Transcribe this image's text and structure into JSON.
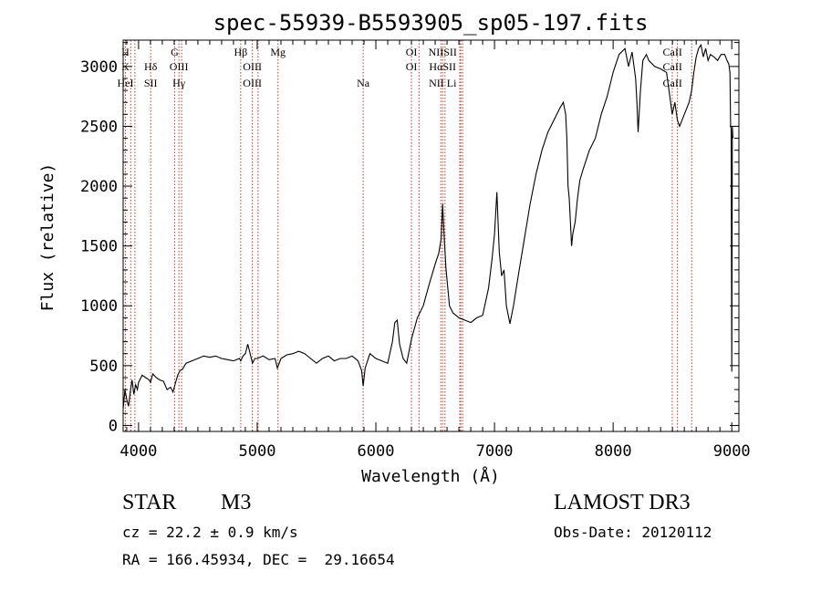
{
  "chart_data": {
    "type": "line",
    "title": "spec-55939-B5593905_sp05-197.fits",
    "xlabel": "Wavelength (Å)",
    "ylabel": "Flux (relative)",
    "xlim": [
      3870,
      9060
    ],
    "ylim": [
      -50,
      3220
    ],
    "xticks": [
      4000,
      5000,
      6000,
      7000,
      8000,
      9000
    ],
    "yticks": [
      0,
      500,
      1000,
      1500,
      2000,
      2500,
      3000
    ],
    "grid": false,
    "series": [
      {
        "name": "spectrum",
        "x": [
          3870,
          3885,
          3900,
          3915,
          3930,
          3945,
          3960,
          3975,
          3990,
          4000,
          4030,
          4060,
          4090,
          4100,
          4120,
          4150,
          4180,
          4210,
          4240,
          4270,
          4290,
          4310,
          4330,
          4350,
          4370,
          4400,
          4450,
          4500,
          4550,
          4600,
          4650,
          4700,
          4750,
          4800,
          4850,
          4861,
          4880,
          4900,
          4920,
          4940,
          4960,
          4980,
          5000,
          5050,
          5100,
          5150,
          5170,
          5200,
          5250,
          5300,
          5350,
          5400,
          5450,
          5500,
          5550,
          5600,
          5650,
          5700,
          5750,
          5800,
          5850,
          5880,
          5893,
          5910,
          5950,
          6000,
          6050,
          6100,
          6140,
          6160,
          6180,
          6200,
          6230,
          6260,
          6300,
          6350,
          6400,
          6450,
          6500,
          6530,
          6550,
          6563,
          6575,
          6590,
          6620,
          6650,
          6700,
          6750,
          6800,
          6850,
          6900,
          6950,
          6980,
          7000,
          7020,
          7040,
          7060,
          7080,
          7100,
          7130,
          7160,
          7200,
          7250,
          7300,
          7350,
          7400,
          7450,
          7500,
          7550,
          7580,
          7600,
          7610,
          7620,
          7630,
          7650,
          7660,
          7680,
          7700,
          7720,
          7750,
          7800,
          7850,
          7900,
          7950,
          8000,
          8050,
          8100,
          8130,
          8160,
          8190,
          8200,
          8210,
          8230,
          8250,
          8280,
          8300,
          8350,
          8400,
          8450,
          8498,
          8520,
          8542,
          8560,
          8600,
          8640,
          8662,
          8680,
          8700,
          8720,
          8740,
          8760,
          8780,
          8800,
          8820,
          8850,
          8880,
          8910,
          8940,
          8960,
          8975,
          8985,
          8990,
          8995,
          9000,
          9005,
          9010
        ],
        "values": [
          140,
          300,
          220,
          160,
          280,
          380,
          260,
          340,
          300,
          360,
          420,
          400,
          380,
          360,
          430,
          400,
          380,
          370,
          300,
          320,
          280,
          350,
          420,
          460,
          470,
          520,
          540,
          560,
          580,
          570,
          580,
          560,
          550,
          540,
          560,
          540,
          580,
          600,
          680,
          600,
          520,
          560,
          560,
          580,
          550,
          560,
          480,
          560,
          590,
          600,
          620,
          600,
          560,
          520,
          560,
          580,
          540,
          560,
          560,
          580,
          540,
          460,
          330,
          480,
          600,
          560,
          540,
          520,
          700,
          860,
          880,
          680,
          560,
          520,
          720,
          900,
          1000,
          1180,
          1350,
          1440,
          1560,
          1850,
          1600,
          1320,
          1000,
          940,
          900,
          880,
          860,
          900,
          920,
          1150,
          1400,
          1600,
          1950,
          1450,
          1250,
          1300,
          1000,
          850,
          1000,
          1250,
          1550,
          1850,
          2100,
          2300,
          2450,
          2550,
          2650,
          2700,
          2600,
          2400,
          2000,
          1900,
          1500,
          1600,
          1700,
          1900,
          2050,
          2150,
          2300,
          2400,
          2600,
          2750,
          2950,
          3100,
          3150,
          3000,
          3120,
          2900,
          2700,
          2450,
          2800,
          3050,
          3100,
          3050,
          3000,
          2980,
          2950,
          2600,
          2700,
          2550,
          2500,
          2600,
          2700,
          2800,
          2950,
          3080,
          3150,
          3180,
          3080,
          3150,
          3050,
          3100,
          3080,
          3050,
          3100,
          3100,
          3050,
          3020,
          2950,
          2500,
          2480,
          450,
          2500,
          2400
        ]
      }
    ],
    "line_labels": [
      {
        "wave": 3889,
        "rows": [
          "H",
          "K",
          "HeI"
        ]
      },
      {
        "wave": 3934,
        "rows": [
          "",
          "",
          ""
        ]
      },
      {
        "wave": 4102,
        "rows": [
          "",
          "Hδ",
          "SII"
        ]
      },
      {
        "wave": 4304,
        "rows": [
          "G",
          "",
          ""
        ]
      },
      {
        "wave": 4340,
        "rows": [
          "",
          "OIII",
          "Hγ"
        ]
      },
      {
        "wave": 4861,
        "rows": [
          "Hβ",
          "",
          ""
        ]
      },
      {
        "wave": 4959,
        "rows": [
          "",
          "OIII",
          "OIII"
        ]
      },
      {
        "wave": 5175,
        "rows": [
          "Mg",
          "",
          ""
        ]
      },
      {
        "wave": 5893,
        "rows": [
          "",
          "",
          "Na"
        ]
      },
      {
        "wave": 6300,
        "rows": [
          "OI",
          "OI",
          ""
        ]
      },
      {
        "wave": 6563,
        "rows": [
          "NIISII",
          "HαSII",
          "NII Li"
        ]
      }
    ],
    "line_labels_right": [
      {
        "wave": 8500,
        "rows": [
          "CaII",
          "CaII",
          "CaII"
        ]
      }
    ],
    "line_positions": [
      3889,
      3934,
      3969,
      4102,
      4304,
      4340,
      4363,
      4861,
      4959,
      5007,
      5175,
      5893,
      6300,
      6364,
      6548,
      6563,
      6583,
      6707,
      6716,
      6731,
      8498,
      8542,
      8662
    ],
    "colors": {
      "spectrum": "#000000",
      "lines": "#c0392b",
      "axes": "#000000"
    }
  },
  "info": {
    "class_label": "STAR",
    "subclass": "M3",
    "survey": "LAMOST DR3",
    "cz": "cz = 22.2 ± 0.9 km/s",
    "obs_date": "Obs-Date: 20120112",
    "coords": "RA = 166.45934, DEC =  29.16654"
  }
}
